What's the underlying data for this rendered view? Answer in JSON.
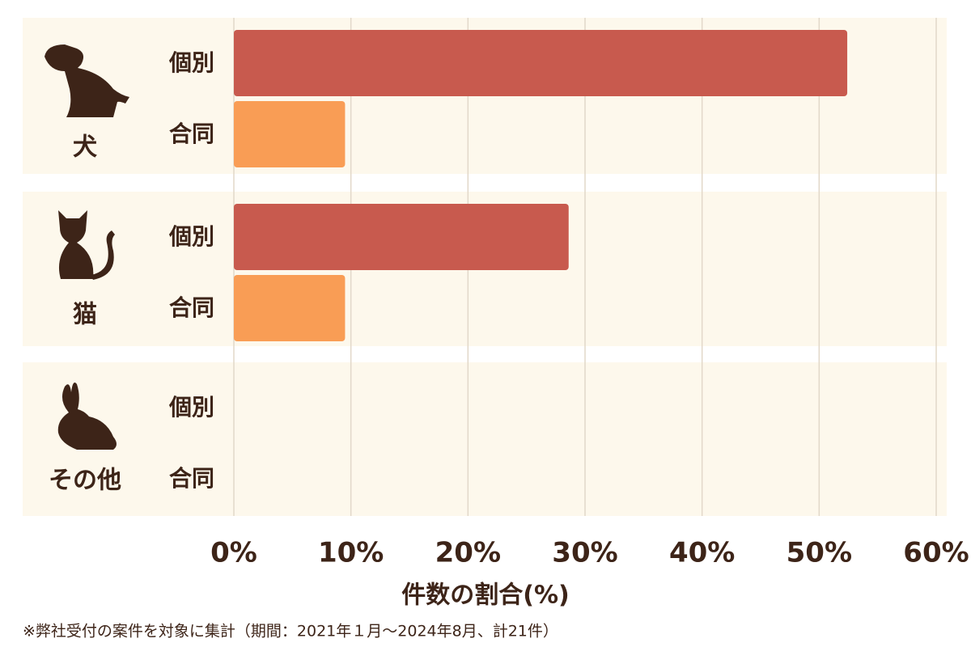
{
  "chart_data": {
    "type": "bar",
    "orientation": "horizontal",
    "categories": [
      "犬",
      "猫",
      "その他"
    ],
    "series": [
      {
        "name": "個別",
        "color": "#c85a4e",
        "values": [
          52.4,
          28.6,
          0
        ]
      },
      {
        "name": "合同",
        "color": "#f99d55",
        "values": [
          9.5,
          9.5,
          0
        ]
      }
    ],
    "xlim": [
      0,
      60
    ],
    "xticks": [
      {
        "value": 0,
        "label": "0%"
      },
      {
        "value": 10,
        "label": "10%"
      },
      {
        "value": 20,
        "label": "20%"
      },
      {
        "value": 30,
        "label": "30%"
      },
      {
        "value": 40,
        "label": "40%"
      },
      {
        "value": 50,
        "label": "50%"
      },
      {
        "value": 60,
        "label": "60%"
      }
    ],
    "x_label": "件数の割合(%)",
    "grid": true,
    "note": "※弊社受付の案件を対象に集計（期間：2021年１月～2024年8月、計21件）"
  }
}
